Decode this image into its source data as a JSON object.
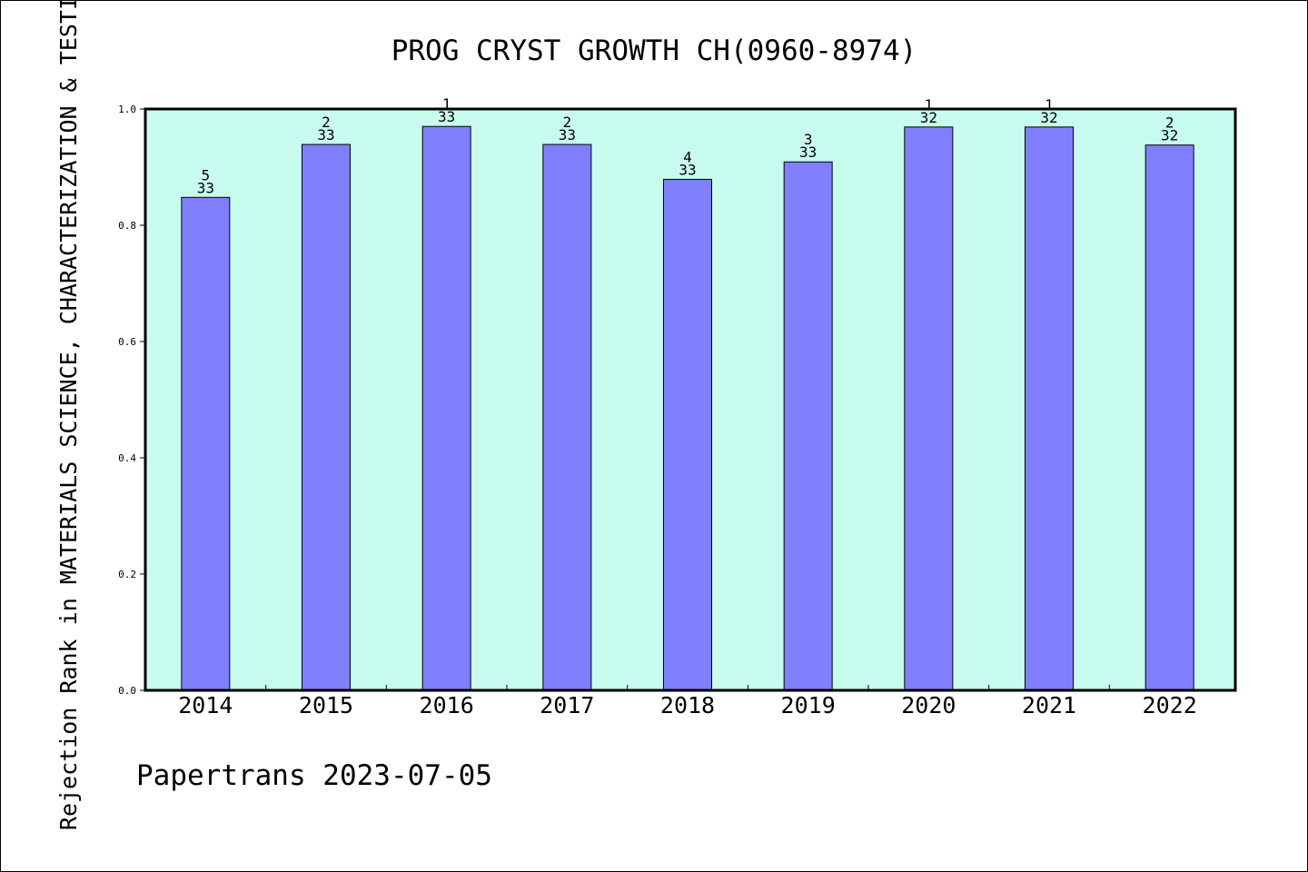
{
  "chart_data": {
    "type": "bar",
    "title": "PROG CRYST GROWTH CH(0960-8974)",
    "ylabel": "Rejection Rank in MATERIALS SCIENCE, CHARACTERIZATION & TESTING",
    "xlabel": "",
    "categories": [
      "2014",
      "2015",
      "2016",
      "2017",
      "2018",
      "2019",
      "2020",
      "2021",
      "2022"
    ],
    "values": [
      0.848,
      0.939,
      0.97,
      0.939,
      0.879,
      0.909,
      0.969,
      0.969,
      0.938
    ],
    "rank_labels": [
      "5",
      "2",
      "1",
      "2",
      "4",
      "3",
      "1",
      "1",
      "2"
    ],
    "total_labels": [
      "33",
      "33",
      "33",
      "33",
      "33",
      "33",
      "32",
      "32",
      "32"
    ],
    "ylim": [
      0,
      1.0
    ],
    "yticks": [
      "0.0",
      "0.2",
      "0.4",
      "0.6",
      "0.8",
      "1.0"
    ],
    "grid": false,
    "legend": "none",
    "colors": {
      "bar": "#8080ff",
      "plot_bg": "#c8fcee",
      "axis": "#000000"
    }
  },
  "footer": {
    "text": "Papertrans 2023-07-05"
  }
}
